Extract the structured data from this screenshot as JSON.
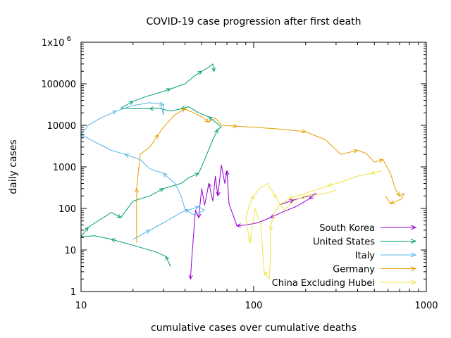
{
  "chart_data": {
    "type": "line",
    "title": "COVID-19 case progression after first death",
    "xlabel": "cumulative cases over cumulative deaths",
    "ylabel": "daily cases",
    "xscale": "log",
    "yscale": "log",
    "xlim": [
      10,
      1000
    ],
    "ylim": [
      1,
      1000000
    ],
    "grid": false,
    "legend_position": "bottom-right",
    "x_ticks": [
      {
        "value": 10,
        "label": "10"
      },
      {
        "value": 100,
        "label": "100"
      },
      {
        "value": 1000,
        "label": "1000"
      }
    ],
    "y_ticks": [
      {
        "value": 1,
        "label": "1",
        "exp": ""
      },
      {
        "value": 10,
        "label": "10",
        "exp": ""
      },
      {
        "value": 100,
        "label": "100",
        "exp": ""
      },
      {
        "value": 1000,
        "label": "1000",
        "exp": ""
      },
      {
        "value": 10000,
        "label": "10000",
        "exp": ""
      },
      {
        "value": 100000,
        "label": "100000",
        "exp": ""
      },
      {
        "value": 1000000,
        "label": "1x10",
        "exp": "6"
      }
    ],
    "series": [
      {
        "name": "South Korea",
        "color": "#9400d3",
        "points": [
          [
            140,
            120
          ],
          [
            170,
            160
          ],
          [
            200,
            190
          ],
          [
            230,
            230
          ],
          [
            210,
            170
          ],
          [
            175,
            110
          ],
          [
            150,
            85
          ],
          [
            125,
            60
          ],
          [
            105,
            45
          ],
          [
            90,
            40
          ],
          [
            80,
            38
          ],
          [
            75,
            80
          ],
          [
            72,
            130
          ],
          [
            70,
            800
          ],
          [
            68,
            400
          ],
          [
            65,
            1100
          ],
          [
            62,
            200
          ],
          [
            60,
            600
          ],
          [
            58,
            150
          ],
          [
            55,
            400
          ],
          [
            52,
            120
          ],
          [
            50,
            300
          ],
          [
            48,
            60
          ],
          [
            46,
            90
          ],
          [
            44,
            8
          ],
          [
            43,
            2
          ]
        ]
      },
      {
        "name": "United States",
        "color": "#009e73",
        "points": [
          [
            33,
            4
          ],
          [
            31,
            7
          ],
          [
            27,
            9
          ],
          [
            20,
            13
          ],
          [
            15,
            18
          ],
          [
            12,
            22
          ],
          [
            10,
            21
          ],
          [
            11,
            35
          ],
          [
            13,
            55
          ],
          [
            15,
            80
          ],
          [
            17,
            60
          ],
          [
            20,
            150
          ],
          [
            25,
            200
          ],
          [
            30,
            300
          ],
          [
            38,
            400
          ],
          [
            42,
            550
          ],
          [
            48,
            700
          ],
          [
            52,
            1500
          ],
          [
            58,
            4500
          ],
          [
            62,
            8000
          ],
          [
            65,
            9000
          ],
          [
            60,
            12000
          ],
          [
            55,
            16000
          ],
          [
            48,
            20000
          ],
          [
            42,
            28000
          ],
          [
            38,
            25000
          ],
          [
            33,
            22000
          ],
          [
            28,
            26000
          ],
          [
            25,
            25000
          ],
          [
            20,
            25000
          ],
          [
            17,
            26000
          ],
          [
            20,
            38000
          ],
          [
            24,
            50000
          ],
          [
            28,
            60000
          ],
          [
            33,
            75000
          ],
          [
            40,
            100000
          ],
          [
            45,
            150000
          ],
          [
            50,
            200000
          ],
          [
            55,
            250000
          ],
          [
            58,
            300000
          ],
          [
            59,
            200000
          ]
        ]
      },
      {
        "name": "Italy",
        "color": "#56b4e9",
        "points": [
          [
            20,
            18
          ],
          [
            25,
            30
          ],
          [
            30,
            45
          ],
          [
            38,
            80
          ],
          [
            48,
            110
          ],
          [
            52,
            90
          ],
          [
            45,
            70
          ],
          [
            40,
            95
          ],
          [
            38,
            200
          ],
          [
            35,
            400
          ],
          [
            30,
            700
          ],
          [
            25,
            900
          ],
          [
            22,
            1500
          ],
          [
            18,
            2000
          ],
          [
            15,
            2500
          ],
          [
            12,
            4000
          ],
          [
            10,
            6000
          ],
          [
            11,
            10000
          ],
          [
            13,
            15000
          ],
          [
            16,
            22000
          ],
          [
            20,
            30000
          ],
          [
            25,
            35000
          ],
          [
            30,
            32000
          ],
          [
            30,
            18000
          ],
          [
            29,
            30000
          ]
        ]
      },
      {
        "name": "Germany",
        "color": "#e69f00",
        "points": [
          [
            21,
            15
          ],
          [
            21,
            300
          ],
          [
            22,
            2000
          ],
          [
            25,
            3000
          ],
          [
            28,
            6000
          ],
          [
            30,
            9000
          ],
          [
            35,
            18000
          ],
          [
            40,
            25000
          ],
          [
            45,
            20000
          ],
          [
            50,
            16000
          ],
          [
            55,
            12000
          ],
          [
            60,
            15000
          ],
          [
            65,
            10000
          ],
          [
            80,
            9500
          ],
          [
            100,
            9000
          ],
          [
            150,
            8000
          ],
          [
            200,
            7000
          ],
          [
            260,
            4500
          ],
          [
            320,
            2000
          ],
          [
            400,
            2500
          ],
          [
            450,
            2100
          ],
          [
            500,
            1300
          ],
          [
            560,
            1500
          ],
          [
            620,
            700
          ],
          [
            660,
            300
          ],
          [
            700,
            200
          ],
          [
            740,
            230
          ],
          [
            720,
            170
          ],
          [
            620,
            130
          ],
          [
            580,
            200
          ]
        ]
      },
      {
        "name": "China Excluding Hubei",
        "color": "#f0e442",
        "points": [
          [
            550,
            800
          ],
          [
            480,
            700
          ],
          [
            400,
            600
          ],
          [
            330,
            450
          ],
          [
            270,
            350
          ],
          [
            230,
            280
          ],
          [
            190,
            220
          ],
          [
            160,
            170
          ],
          [
            140,
            120
          ],
          [
            130,
            70
          ],
          [
            125,
            30
          ],
          [
            125,
            6
          ],
          [
            123,
            2
          ],
          [
            115,
            3
          ],
          [
            110,
            40
          ],
          [
            102,
            100
          ],
          [
            95,
            15
          ],
          [
            90,
            60
          ],
          [
            95,
            130
          ],
          [
            100,
            200
          ],
          [
            108,
            300
          ],
          [
            120,
            400
          ],
          [
            135,
            180
          ],
          [
            150,
            90
          ],
          [
            170,
            150
          ],
          [
            200,
            200
          ],
          [
            260,
            230
          ],
          [
            300,
            280
          ]
        ]
      }
    ]
  }
}
